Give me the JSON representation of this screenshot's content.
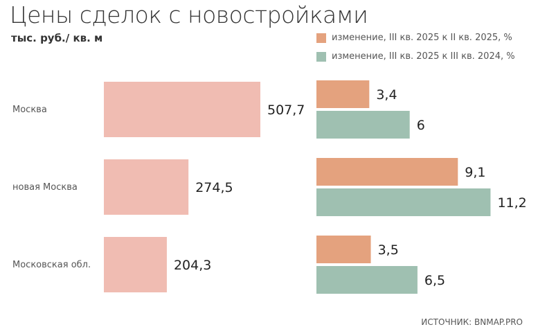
{
  "chart_data": {
    "type": "bar",
    "orientation": "horizontal",
    "title": "Цены сделок с новостройками",
    "subtitle": "тыс. руб./ кв. м",
    "categories": [
      "Москва",
      "новая Москва",
      "Московская обл."
    ],
    "price": {
      "values": [
        507.7,
        274.5,
        204.3
      ],
      "labels": [
        "507,7",
        "274,5",
        "204,3"
      ],
      "color": "#f0bcb2"
    },
    "series": [
      {
        "name": "изменение, III кв. 2025 к II кв. 2025, %",
        "values": [
          3.4,
          9.1,
          3.5
        ],
        "labels": [
          "3,4",
          "9,1",
          "3,5"
        ],
        "color": "#e4a27e"
      },
      {
        "name": "изменение, III кв. 2025 к III кв. 2024, %",
        "values": [
          6,
          11.2,
          6.5
        ],
        "labels": [
          "6",
          "11,2",
          "6,5"
        ],
        "color": "#9fc0b1"
      }
    ],
    "legend_position": "top-right",
    "grid": false,
    "source": "ИСТОЧНИК: BNMAP.PRO"
  }
}
